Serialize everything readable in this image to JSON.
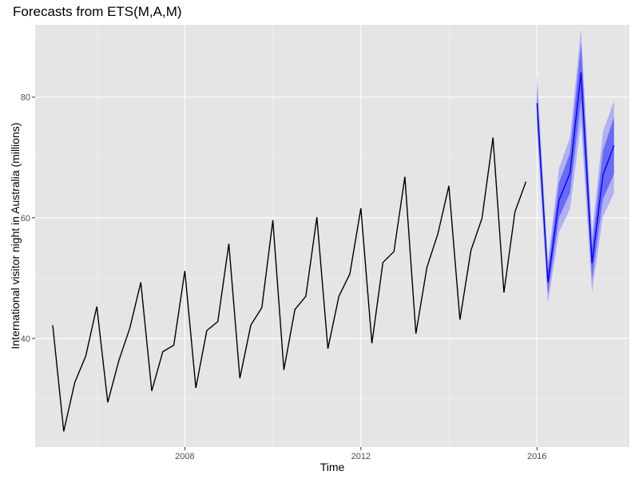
{
  "chart_data": {
    "type": "line",
    "title": "Forecasts from ETS(M,A,M)",
    "xlabel": "Time",
    "ylabel": "International visitor night in Australia (millions)",
    "xlim": [
      2004.6,
      2018.1
    ],
    "ylim": [
      22,
      92
    ],
    "x_ticks": [
      2008,
      2012,
      2016
    ],
    "y_ticks": [
      40,
      60,
      80
    ],
    "grid": true,
    "legend": "none",
    "colors": {
      "panel": "#e5e5e5",
      "grid_major": "#ffffff",
      "grid_minor": "#f2f2f2",
      "history_line": "#000000",
      "forecast_line": "#0000ff",
      "band_95": "#b0b0f2",
      "band_80": "#6a6af7"
    },
    "series": [
      {
        "role": "history",
        "x": [
          2005.0,
          2005.25,
          2005.5,
          2005.75,
          2006.0,
          2006.25,
          2006.5,
          2006.75,
          2007.0,
          2007.25,
          2007.5,
          2007.75,
          2008.0,
          2008.25,
          2008.5,
          2008.75,
          2009.0,
          2009.25,
          2009.5,
          2009.75,
          2010.0,
          2010.25,
          2010.5,
          2010.75,
          2011.0,
          2011.25,
          2011.5,
          2011.75,
          2012.0,
          2012.25,
          2012.5,
          2012.75,
          2013.0,
          2013.25,
          2013.5,
          2013.75,
          2014.0,
          2014.25,
          2014.5,
          2014.75,
          2015.0,
          2015.25,
          2015.5,
          2015.75
        ],
        "values": [
          42.2,
          24.6,
          32.7,
          37.1,
          45.3,
          29.4,
          36.3,
          41.7,
          49.3,
          31.3,
          37.8,
          38.9,
          51.2,
          31.8,
          41.3,
          42.8,
          55.7,
          33.4,
          42.2,
          45.1,
          59.6,
          34.8,
          44.8,
          47.0,
          60.1,
          38.3,
          47.0,
          50.7,
          61.6,
          39.2,
          52.6,
          54.4,
          66.8,
          40.8,
          51.8,
          57.4,
          65.3,
          43.1,
          54.6,
          59.9,
          73.3,
          47.6,
          61.0,
          66.0
        ]
      },
      {
        "role": "forecast",
        "x": [
          2016.0,
          2016.25,
          2016.5,
          2016.75,
          2017.0,
          2017.25,
          2017.5,
          2017.75
        ],
        "values": [
          79.0,
          49.3,
          62.9,
          67.4,
          84.1,
          52.5,
          67.1,
          72.0
        ],
        "lower_80": [
          76.3,
          47.3,
          60.0,
          64.1,
          79.4,
          49.8,
          63.1,
          67.3
        ],
        "upper_80": [
          81.7,
          51.3,
          65.8,
          70.7,
          88.8,
          55.2,
          71.1,
          76.7
        ],
        "lower_95": [
          74.2,
          45.8,
          57.6,
          61.5,
          75.7,
          47.7,
          60.2,
          64.1
        ],
        "upper_95": [
          83.8,
          52.8,
          68.2,
          73.3,
          91.3,
          57.4,
          74.3,
          79.4
        ]
      }
    ]
  }
}
